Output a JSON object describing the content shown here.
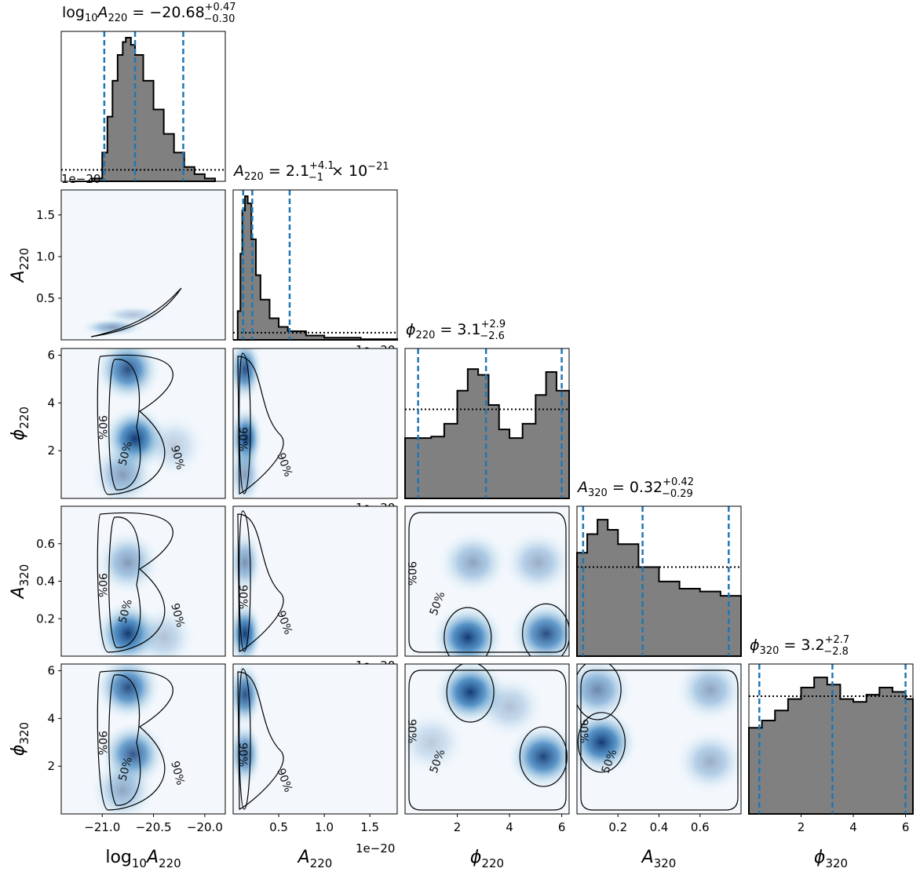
{
  "chart_data": {
    "type": "corner",
    "parameters": [
      "log10_A220",
      "A220",
      "phi220",
      "A320",
      "phi320"
    ],
    "colors": {
      "hist_fill": "#808080",
      "hist_edge": "#000000",
      "quantile_line": "#1f77b4",
      "density_map": "Blues",
      "contour": "#000000"
    },
    "offset_label": "1e−20",
    "contour_levels": [
      "50%",
      "90%"
    ],
    "diagonal": [
      {
        "param": "log10_A220",
        "title": "log₁₀A₂₂₀ = −20.68⁺⁰˙⁴⁷₋₀.₃₀",
        "title_parts": {
          "name": "log",
          "sub1": "10",
          "var": "A",
          "sub2": "220",
          "median": "−20.68",
          "plus": "+0.47",
          "minus": "−0.30"
        },
        "xlim": [
          -21.4,
          -19.8
        ],
        "median": -20.68,
        "lower": -20.98,
        "upper": -20.21,
        "hist": [
          [
            -21.3,
            0
          ],
          [
            -21.1,
            0.02
          ],
          [
            -21.0,
            0.2
          ],
          [
            -20.95,
            0.45
          ],
          [
            -20.9,
            0.7
          ],
          [
            -20.85,
            0.88
          ],
          [
            -20.8,
            0.97
          ],
          [
            -20.77,
            1.0
          ],
          [
            -20.72,
            0.95
          ],
          [
            -20.68,
            0.88
          ],
          [
            -20.6,
            0.7
          ],
          [
            -20.5,
            0.5
          ],
          [
            -20.4,
            0.33
          ],
          [
            -20.3,
            0.2
          ],
          [
            -20.2,
            0.1
          ],
          [
            -20.1,
            0.05
          ],
          [
            -20.0,
            0.02
          ],
          [
            -19.9,
            0.0
          ]
        ],
        "prior": 0.08
      },
      {
        "param": "A220",
        "title_parts": {
          "var": "A",
          "sub2": "220",
          "median": "2.1",
          "plus": "+4.1",
          "minus": "−1",
          "suffix": "× 10",
          "exp": "−21"
        },
        "xlim": [
          0.0,
          1.8
        ],
        "median": 0.21,
        "lower": 0.11,
        "upper": 0.62,
        "hist": [
          [
            0.0,
            0.0
          ],
          [
            0.05,
            0.2
          ],
          [
            0.08,
            0.6
          ],
          [
            0.1,
            0.9
          ],
          [
            0.13,
            1.0
          ],
          [
            0.16,
            0.95
          ],
          [
            0.2,
            0.7
          ],
          [
            0.25,
            0.45
          ],
          [
            0.3,
            0.28
          ],
          [
            0.4,
            0.15
          ],
          [
            0.5,
            0.09
          ],
          [
            0.6,
            0.06
          ],
          [
            0.8,
            0.03
          ],
          [
            1.0,
            0.015
          ],
          [
            1.4,
            0.005
          ],
          [
            1.8,
            0.0
          ]
        ],
        "prior": 0.05
      },
      {
        "param": "phi220",
        "title_parts": {
          "var": "ϕ",
          "sub2": "220",
          "median": "3.1",
          "plus": "+2.9",
          "minus": "−2.6"
        },
        "xlim": [
          0.0,
          6.283
        ],
        "median": 3.1,
        "lower": 0.5,
        "upper": 6.0,
        "hist": [
          [
            0.0,
            0.42
          ],
          [
            0.5,
            0.42
          ],
          [
            1.0,
            0.43
          ],
          [
            1.5,
            0.52
          ],
          [
            2.0,
            0.75
          ],
          [
            2.4,
            0.9
          ],
          [
            2.8,
            0.86
          ],
          [
            3.2,
            0.65
          ],
          [
            3.6,
            0.48
          ],
          [
            4.0,
            0.42
          ],
          [
            4.5,
            0.52
          ],
          [
            5.0,
            0.72
          ],
          [
            5.4,
            0.88
          ],
          [
            5.8,
            0.75
          ],
          [
            6.283,
            0.5
          ]
        ],
        "prior": 0.62
      },
      {
        "param": "A320",
        "title_parts": {
          "var": "A",
          "sub2": "320",
          "median": "0.32",
          "plus": "+0.42",
          "minus": "−0.29"
        },
        "xlim": [
          0.0,
          0.8
        ],
        "median": 0.32,
        "lower": 0.03,
        "upper": 0.74,
        "hist": [
          [
            0.0,
            0.72
          ],
          [
            0.05,
            0.85
          ],
          [
            0.1,
            0.95
          ],
          [
            0.15,
            0.88
          ],
          [
            0.2,
            0.78
          ],
          [
            0.3,
            0.62
          ],
          [
            0.4,
            0.52
          ],
          [
            0.5,
            0.47
          ],
          [
            0.6,
            0.45
          ],
          [
            0.7,
            0.42
          ],
          [
            0.8,
            0.38
          ]
        ],
        "prior": 0.62
      },
      {
        "param": "phi320",
        "title_parts": {
          "var": "ϕ",
          "sub2": "320",
          "median": "3.2",
          "plus": "+2.7",
          "minus": "−2.8"
        },
        "xlim": [
          0.0,
          6.283
        ],
        "median": 3.2,
        "lower": 0.4,
        "upper": 6.0,
        "hist": [
          [
            0.0,
            0.6
          ],
          [
            0.5,
            0.65
          ],
          [
            1.0,
            0.72
          ],
          [
            1.5,
            0.8
          ],
          [
            2.0,
            0.88
          ],
          [
            2.5,
            0.95
          ],
          [
            3.0,
            0.9
          ],
          [
            3.5,
            0.8
          ],
          [
            4.0,
            0.78
          ],
          [
            4.5,
            0.83
          ],
          [
            5.0,
            0.88
          ],
          [
            5.5,
            0.85
          ],
          [
            6.0,
            0.8
          ],
          [
            6.283,
            0.7
          ]
        ],
        "prior": 0.82
      }
    ],
    "axes": {
      "log10_A220": {
        "label_pre": "log",
        "label_sub1": "10",
        "label_var": "A",
        "label_sub2": "220",
        "lim": [
          -21.4,
          -19.8
        ],
        "ticks": [
          -21.0,
          -20.5,
          -20.0
        ],
        "ticklabels": [
          "−21.0",
          "−20.5",
          "−20.0"
        ]
      },
      "A220": {
        "label_var": "A",
        "label_sub2": "220",
        "lim": [
          0.0,
          1.8
        ],
        "ticks": [
          0.5,
          1.0,
          1.5
        ],
        "ticklabels": [
          "0.5",
          "1.0",
          "1.5"
        ]
      },
      "phi220": {
        "label_var": "ϕ",
        "label_sub2": "220",
        "lim": [
          0.0,
          6.283
        ],
        "ticks": [
          2,
          4,
          6
        ],
        "ticklabels": [
          "2",
          "4",
          "6"
        ]
      },
      "A320": {
        "label_var": "A",
        "label_sub2": "320",
        "lim": [
          0.0,
          0.8
        ],
        "ticks": [
          0.2,
          0.4,
          0.6
        ],
        "ticklabels": [
          "0.2",
          "0.4",
          "0.6"
        ]
      },
      "phi320": {
        "label_var": "ϕ",
        "label_sub2": "320",
        "lim": [
          0.0,
          6.283
        ],
        "ticks": [
          2,
          4,
          6
        ],
        "ticklabels": [
          "2",
          "4",
          "6"
        ]
      }
    },
    "density_modes": {
      "A220|log10_A220": [
        [
          -20.9,
          0.15,
          0.5
        ],
        [
          -20.7,
          0.3,
          0.3
        ]
      ],
      "phi220|log10_A220": [
        [
          -20.75,
          5.4,
          0.9
        ],
        [
          -20.68,
          2.5,
          1.0
        ],
        [
          -20.8,
          1.0,
          0.5
        ],
        [
          -20.3,
          2.2,
          0.25
        ]
      ],
      "phi220|A220": [
        [
          0.13,
          5.4,
          0.9
        ],
        [
          0.14,
          2.5,
          1.0
        ],
        [
          0.13,
          1.0,
          0.5
        ]
      ],
      "A320|log10_A220": [
        [
          -20.75,
          0.12,
          1.0
        ],
        [
          -20.75,
          0.5,
          0.5
        ],
        [
          -20.4,
          0.1,
          0.3
        ]
      ],
      "A320|A220": [
        [
          0.13,
          0.12,
          1.0
        ],
        [
          0.13,
          0.5,
          0.55
        ]
      ],
      "A320|phi220": [
        [
          2.4,
          0.1,
          1.0
        ],
        [
          5.4,
          0.12,
          0.9
        ],
        [
          2.6,
          0.5,
          0.45
        ],
        [
          5.1,
          0.5,
          0.4
        ]
      ],
      "phi320|log10_A220": [
        [
          -20.75,
          5.3,
          0.9
        ],
        [
          -20.7,
          2.5,
          0.85
        ],
        [
          -20.8,
          1.0,
          0.45
        ]
      ],
      "phi320|A220": [
        [
          0.13,
          5.0,
          0.9
        ],
        [
          0.13,
          2.5,
          0.8
        ]
      ],
      "phi320|phi220": [
        [
          2.5,
          5.1,
          1.0
        ],
        [
          5.3,
          2.4,
          0.95
        ],
        [
          1.0,
          3.0,
          0.25
        ],
        [
          4.0,
          4.5,
          0.3
        ]
      ],
      "phi320|A320": [
        [
          0.12,
          3.0,
          1.0
        ],
        [
          0.1,
          5.2,
          0.6
        ],
        [
          0.65,
          5.2,
          0.45
        ],
        [
          0.65,
          2.2,
          0.4
        ]
      ]
    }
  }
}
